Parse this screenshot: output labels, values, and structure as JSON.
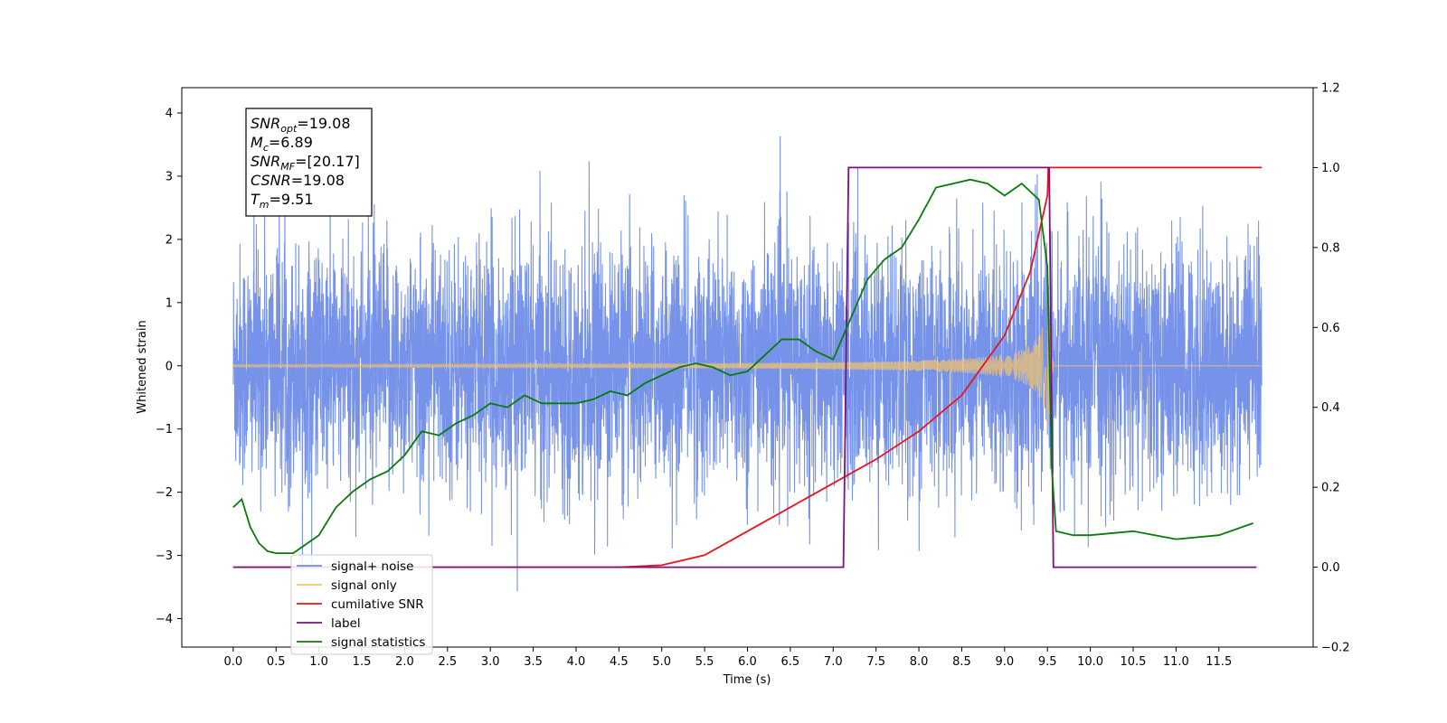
{
  "chart_data": {
    "type": "line",
    "xlabel": "Time (s)",
    "ylabel_left": "Whitened strain",
    "ylabel_right": "",
    "xlim": [
      -0.6,
      12.6
    ],
    "ylim_left": [
      -4.45,
      4.4
    ],
    "ylim_right": [
      -0.2,
      1.2
    ],
    "x_ticks": [
      "0.0",
      "0.5",
      "1.0",
      "1.5",
      "2.0",
      "2.5",
      "3.0",
      "3.5",
      "4.0",
      "4.5",
      "5.0",
      "5.5",
      "6.0",
      "6.5",
      "7.0",
      "7.5",
      "8.0",
      "8.5",
      "9.0",
      "9.5",
      "10.0",
      "10.5",
      "11.0",
      "11.5"
    ],
    "y_ticks_left": [
      "4",
      "3",
      "2",
      "1",
      "0",
      "−1",
      "−2",
      "−3",
      "−4"
    ],
    "y_ticks_right": [
      "1.2",
      "1.0",
      "0.8",
      "0.6",
      "0.4",
      "0.2",
      "0.0",
      "−0.2"
    ],
    "grid": false,
    "legend_position": "lower-left",
    "annotation": {
      "lines": [
        {
          "main": "SNR",
          "sub": "opt",
          "value": "=19.08"
        },
        {
          "main": "M",
          "sub": "c",
          "value": "=6.89"
        },
        {
          "main": "SNR",
          "sub": "MF",
          "value": "=[20.17]"
        },
        {
          "main": "CSNR",
          "sub": "",
          "value": "=19.08"
        },
        {
          "main": "T",
          "sub": "m",
          "value": "=9.51"
        }
      ]
    },
    "series": [
      {
        "name": "signal+ noise",
        "color": "#6f8de8",
        "axis": "left",
        "kind": "noise",
        "x_range": [
          0.0,
          12.0
        ],
        "envelope_rms": 1.0
      },
      {
        "name": "signal only",
        "color": "#f7c46a",
        "axis": "left",
        "kind": "chirp",
        "x_range": [
          0.0,
          12.0
        ],
        "merger_time": 9.51,
        "peak_amplitude": 1.3
      },
      {
        "name": "cumilative SNR",
        "color": "#e8141e",
        "axis": "right",
        "x": [
          0.0,
          4.5,
          5.0,
          5.5,
          6.0,
          6.5,
          7.0,
          7.5,
          8.0,
          8.5,
          9.0,
          9.3,
          9.5,
          9.51,
          12.0
        ],
        "y": [
          0.0,
          0.0,
          0.005,
          0.03,
          0.09,
          0.15,
          0.21,
          0.27,
          0.34,
          0.43,
          0.58,
          0.74,
          0.93,
          1.0,
          1.0
        ]
      },
      {
        "name": "label",
        "color": "#7f0f7f",
        "axis": "right",
        "x": [
          0.0,
          7.12,
          7.18,
          9.52,
          9.57,
          11.94
        ],
        "y": [
          0.0,
          0.0,
          1.0,
          1.0,
          0.0,
          0.0
        ]
      },
      {
        "name": "signal statistics",
        "color": "#0a7a0a",
        "axis": "right",
        "x": [
          0.0,
          0.1,
          0.2,
          0.3,
          0.4,
          0.5,
          0.6,
          0.7,
          0.8,
          1.0,
          1.2,
          1.4,
          1.6,
          1.8,
          2.0,
          2.2,
          2.4,
          2.6,
          2.8,
          3.0,
          3.2,
          3.4,
          3.6,
          3.8,
          4.0,
          4.2,
          4.4,
          4.6,
          4.8,
          5.0,
          5.2,
          5.4,
          5.6,
          5.8,
          6.0,
          6.2,
          6.4,
          6.6,
          6.8,
          7.0,
          7.2,
          7.4,
          7.6,
          7.8,
          8.0,
          8.2,
          8.4,
          8.6,
          8.8,
          9.0,
          9.2,
          9.4,
          9.5,
          9.55,
          9.6,
          9.8,
          10.0,
          10.5,
          11.0,
          11.5,
          11.9
        ],
        "y": [
          0.15,
          0.17,
          0.1,
          0.06,
          0.04,
          0.035,
          0.035,
          0.035,
          0.05,
          0.08,
          0.15,
          0.19,
          0.22,
          0.24,
          0.28,
          0.34,
          0.33,
          0.36,
          0.38,
          0.41,
          0.4,
          0.43,
          0.41,
          0.41,
          0.41,
          0.42,
          0.44,
          0.43,
          0.46,
          0.48,
          0.5,
          0.51,
          0.5,
          0.48,
          0.49,
          0.53,
          0.57,
          0.57,
          0.54,
          0.52,
          0.62,
          0.72,
          0.77,
          0.8,
          0.87,
          0.95,
          0.96,
          0.97,
          0.96,
          0.93,
          0.96,
          0.92,
          0.75,
          0.25,
          0.09,
          0.08,
          0.08,
          0.09,
          0.07,
          0.08,
          0.11
        ]
      }
    ]
  }
}
